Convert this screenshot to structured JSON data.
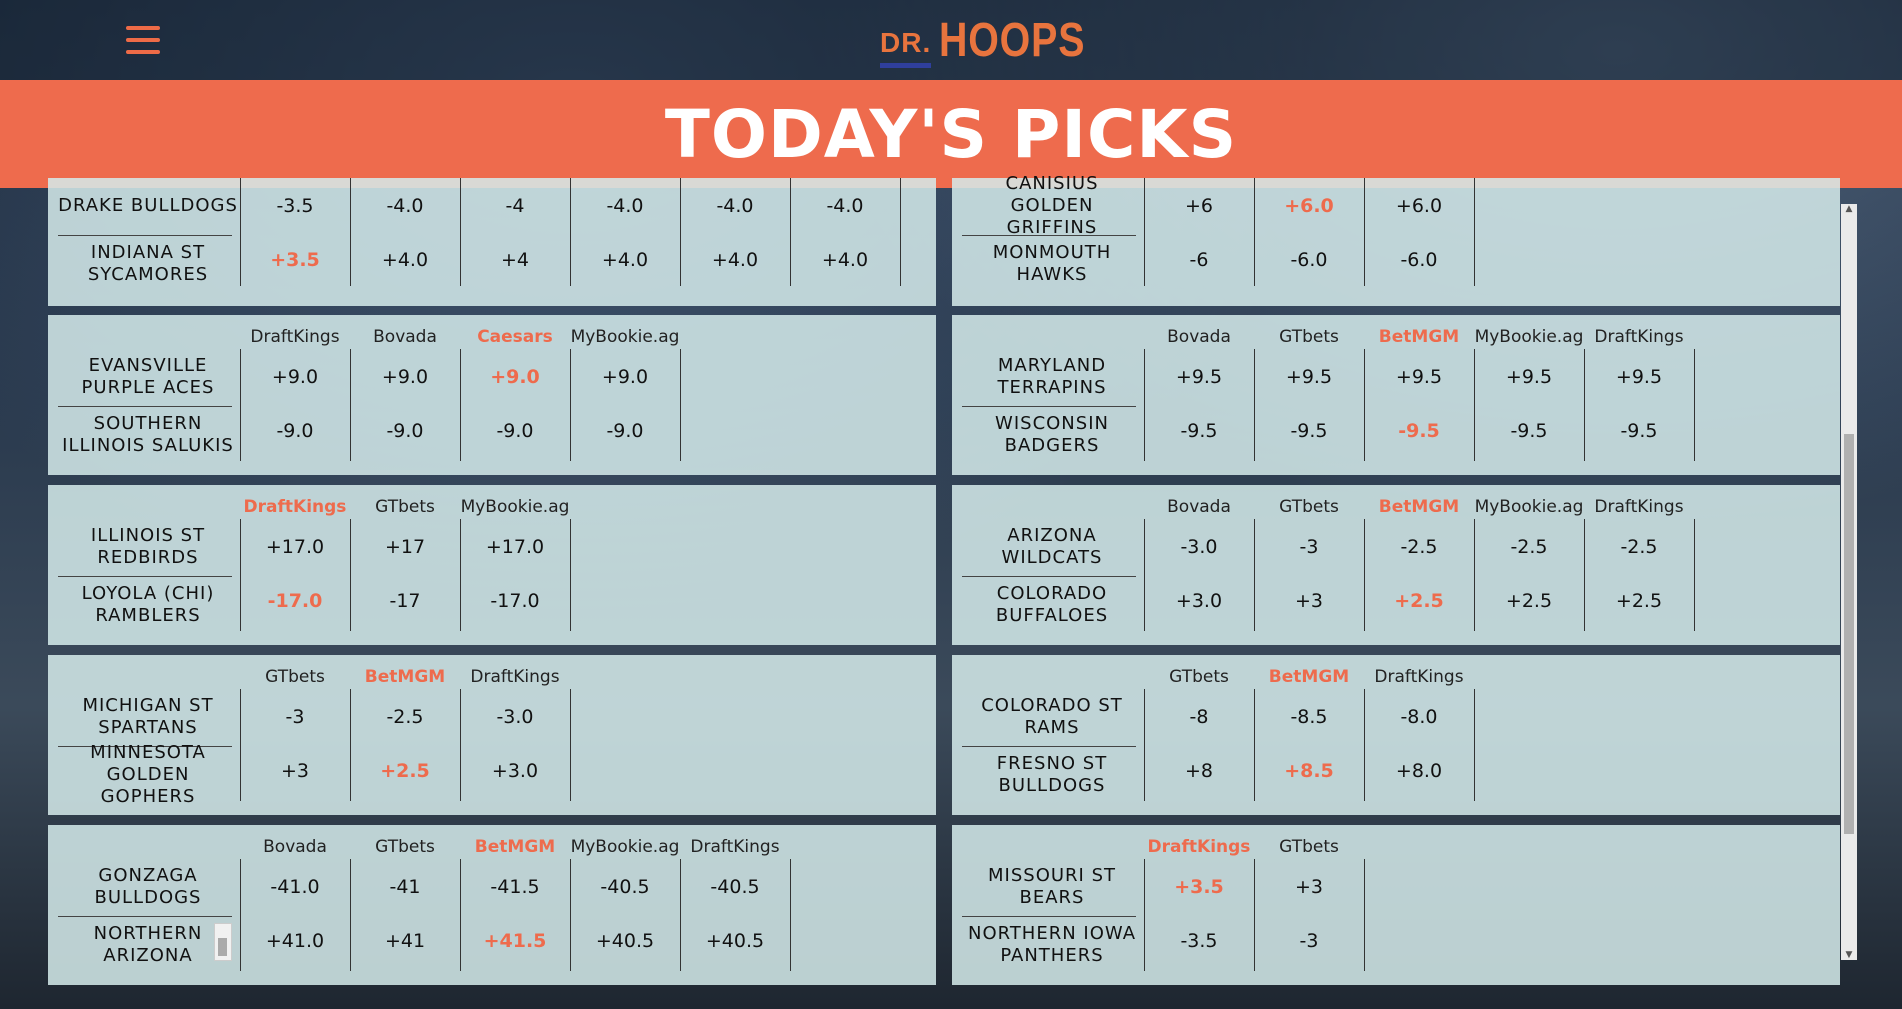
{
  "header": {
    "logo_dr": "DR.",
    "logo_hoops": "HOOPS",
    "menu_icon": "hamburger-icon"
  },
  "banner": {
    "title": "TODAY'S PICKS"
  },
  "accent_color": "#ee6b4d",
  "games": [
    {
      "team1": "DRAKE BULLDOGS",
      "team2": "INDIANA ST SYCAMORES",
      "books": [],
      "top": [
        "-3.5",
        "-4.0",
        "-4",
        "-4.0",
        "-4.0",
        "-4.0"
      ],
      "bottom": [
        "+3.5",
        "+4.0",
        "+4",
        "+4.0",
        "+4.0",
        "+4.0"
      ],
      "hl_top": -1,
      "hl_bottom": 0
    },
    {
      "team1": "CANISIUS GOLDEN GRIFFINS",
      "team2": "MONMOUTH HAWKS",
      "books": [],
      "top": [
        "+6",
        "+6.0",
        "+6.0"
      ],
      "bottom": [
        "-6",
        "-6.0",
        "-6.0"
      ],
      "hl_top": 1,
      "hl_bottom": -1
    },
    {
      "team1": "EVANSVILLE PURPLE ACES",
      "team2": "SOUTHERN ILLINOIS SALUKIS",
      "books": [
        "DraftKings",
        "Bovada",
        "Caesars",
        "MyBookie.ag"
      ],
      "hl_book": 2,
      "top": [
        "+9.0",
        "+9.0",
        "+9.0",
        "+9.0"
      ],
      "bottom": [
        "-9.0",
        "-9.0",
        "-9.0",
        "-9.0"
      ],
      "hl_top": 2,
      "hl_bottom": -1
    },
    {
      "team1": "MARYLAND TERRAPINS",
      "team2": "WISCONSIN BADGERS",
      "books": [
        "Bovada",
        "GTbets",
        "BetMGM",
        "MyBookie.ag",
        "DraftKings"
      ],
      "hl_book": 2,
      "top": [
        "+9.5",
        "+9.5",
        "+9.5",
        "+9.5",
        "+9.5"
      ],
      "bottom": [
        "-9.5",
        "-9.5",
        "-9.5",
        "-9.5",
        "-9.5"
      ],
      "hl_top": -1,
      "hl_bottom": 2
    },
    {
      "team1": "ILLINOIS ST REDBIRDS",
      "team2": "LOYOLA (CHI) RAMBLERS",
      "books": [
        "DraftKings",
        "GTbets",
        "MyBookie.ag"
      ],
      "hl_book": 0,
      "top": [
        "+17.0",
        "+17",
        "+17.0"
      ],
      "bottom": [
        "-17.0",
        "-17",
        "-17.0"
      ],
      "hl_top": -1,
      "hl_bottom": 0
    },
    {
      "team1": "ARIZONA WILDCATS",
      "team2": "COLORADO BUFFALOES",
      "books": [
        "Bovada",
        "GTbets",
        "BetMGM",
        "MyBookie.ag",
        "DraftKings"
      ],
      "hl_book": 2,
      "top": [
        "-3.0",
        "-3",
        "-2.5",
        "-2.5",
        "-2.5"
      ],
      "bottom": [
        "+3.0",
        "+3",
        "+2.5",
        "+2.5",
        "+2.5"
      ],
      "hl_top": -1,
      "hl_bottom": 2
    },
    {
      "team1": "MICHIGAN ST SPARTANS",
      "team2": "MINNESOTA GOLDEN GOPHERS",
      "books": [
        "GTbets",
        "BetMGM",
        "DraftKings"
      ],
      "hl_book": 1,
      "top": [
        "-3",
        "-2.5",
        "-3.0"
      ],
      "bottom": [
        "+3",
        "+2.5",
        "+3.0"
      ],
      "hl_top": -1,
      "hl_bottom": 1
    },
    {
      "team1": "COLORADO ST RAMS",
      "team2": "FRESNO ST BULLDOGS",
      "books": [
        "GTbets",
        "BetMGM",
        "DraftKings"
      ],
      "hl_book": 1,
      "top": [
        "-8",
        "-8.5",
        "-8.0"
      ],
      "bottom": [
        "+8",
        "+8.5",
        "+8.0"
      ],
      "hl_top": -1,
      "hl_bottom": 1
    },
    {
      "team1": "GONZAGA BULLDOGS",
      "team2": "NORTHERN ARIZONA",
      "books": [
        "Bovada",
        "GTbets",
        "BetMGM",
        "MyBookie.ag",
        "DraftKings"
      ],
      "hl_book": 2,
      "top": [
        "-41.0",
        "-41",
        "-41.5",
        "-40.5",
        "-40.5"
      ],
      "bottom": [
        "+41.0",
        "+41",
        "+41.5",
        "+40.5",
        "+40.5"
      ],
      "hl_top": -1,
      "hl_bottom": 2
    },
    {
      "team1": "MISSOURI ST BEARS",
      "team2": "NORTHERN IOWA PANTHERS",
      "books": [
        "DraftKings",
        "GTbets"
      ],
      "hl_book": 0,
      "top": [
        "+3.5",
        "+3"
      ],
      "bottom": [
        "-3.5",
        "-3"
      ],
      "hl_top": 0,
      "hl_bottom": -1
    }
  ]
}
